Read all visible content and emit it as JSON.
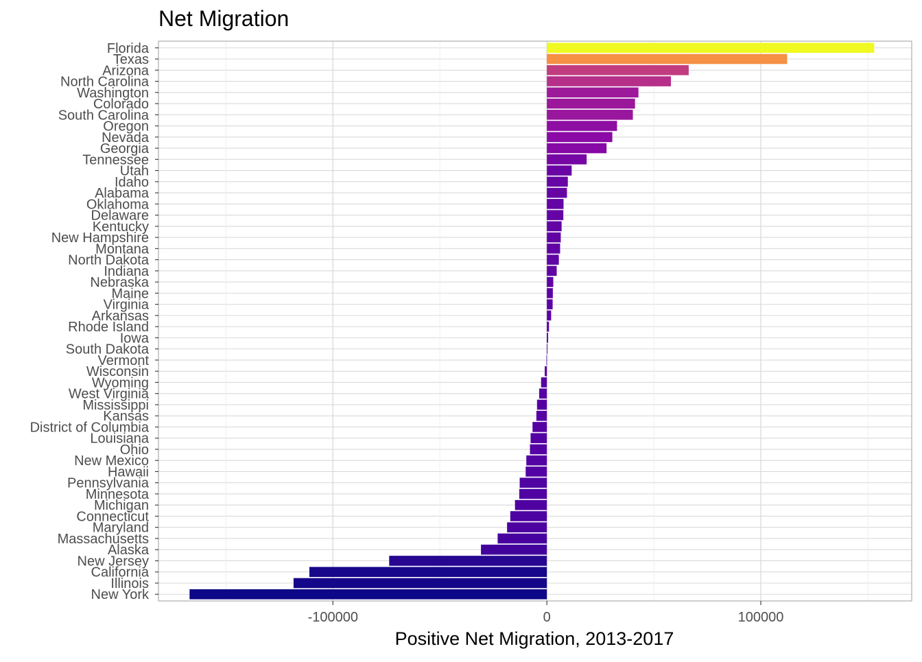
{
  "chart_data": {
    "type": "bar",
    "orientation": "horizontal",
    "title": "Net Migration",
    "xlabel": "Positive Net Migration, 2013-2017",
    "ylabel": "",
    "xlim": [
      -167000,
      156000
    ],
    "x_ticks": [
      {
        "value": -100000,
        "label": "-100000"
      },
      {
        "value": 0,
        "label": "0"
      },
      {
        "value": 100000,
        "label": "100000"
      }
    ],
    "x_minor_ticks": [
      -150000,
      -50000,
      50000,
      150000
    ],
    "grid": true,
    "legend": "none",
    "color_scale": "plasma",
    "categories": [
      "Florida",
      "Texas",
      "Arizona",
      "North Carolina",
      "Washington",
      "Colorado",
      "South Carolina",
      "Oregon",
      "Nevada",
      "Georgia",
      "Tennessee",
      "Utah",
      "Idaho",
      "Alabama",
      "Oklahoma",
      "Delaware",
      "Kentucky",
      "New Hampshire",
      "Montana",
      "North Dakota",
      "Indiana",
      "Nebraska",
      "Maine",
      "Virginia",
      "Arkansas",
      "Rhode Island",
      "Iowa",
      "South Dakota",
      "Vermont",
      "Wisconsin",
      "Wyoming",
      "West Virginia",
      "Mississippi",
      "Kansas",
      "District of Columbia",
      "Louisiana",
      "Ohio",
      "New Mexico",
      "Hawaii",
      "Pennsylvania",
      "Minnesota",
      "Michigan",
      "Connecticut",
      "Maryland",
      "Massachusetts",
      "Alaska",
      "New Jersey",
      "California",
      "Illinois",
      "New York"
    ],
    "values": [
      153000,
      112300,
      66300,
      58000,
      42800,
      41200,
      40200,
      32800,
      30600,
      27900,
      18600,
      11600,
      9800,
      9400,
      7800,
      7700,
      6900,
      6500,
      6200,
      5600,
      4600,
      3000,
      2800,
      2700,
      2000,
      1000,
      600,
      300,
      -200,
      -1000,
      -2700,
      -3600,
      -4600,
      -4900,
      -6700,
      -7600,
      -7900,
      -9600,
      -9900,
      -12700,
      -12900,
      -14900,
      -17100,
      -18600,
      -23000,
      -30800,
      -73700,
      -111000,
      -118400,
      -167000
    ],
    "colors": {
      "panel_border": "#b3b3b3",
      "grid_major": "#d9d9d9",
      "grid_minor": "#eeeeee",
      "low": "#0d0887",
      "high": "#f0f921"
    }
  }
}
